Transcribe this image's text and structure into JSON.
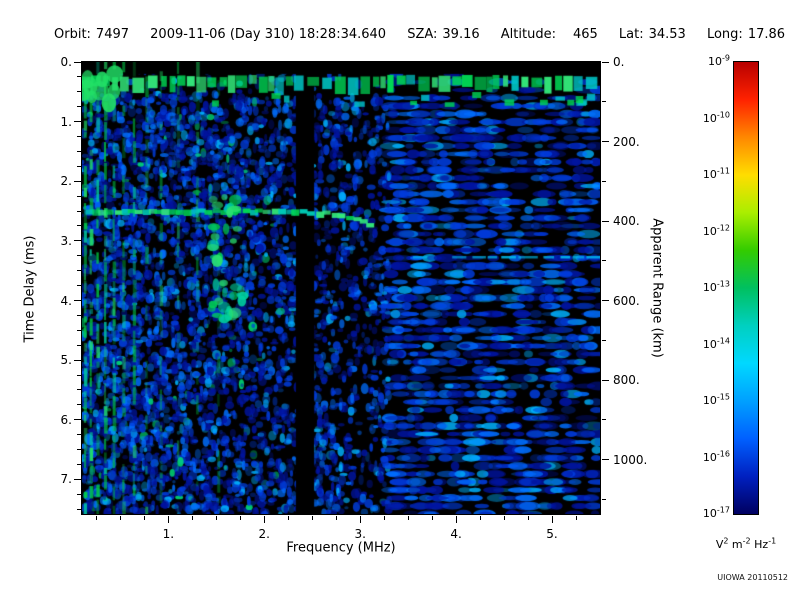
{
  "header": {
    "orbit_label": "Orbit:",
    "orbit_value": "7497",
    "datetime": "2009-11-06 (Day 310) 18:28:34.640",
    "sza_label": "SZA:",
    "sza_value": "39.16",
    "altitude_label": "Altitude:",
    "altitude_value": "465",
    "lat_label": "Lat:",
    "lat_value": "34.53",
    "long_label": "Long:",
    "long_value": "17.86"
  },
  "credit": "UIOWA 20110512",
  "chart_data": {
    "type": "heatmap",
    "title": "Radar sounder ionogram spectrogram",
    "xlabel": "Frequency (MHz)",
    "ylabel": "Time Delay (ms)",
    "y2label": "Apparent Range (km)",
    "x_range": [
      0.1,
      5.5
    ],
    "y_range": [
      0,
      7.58
    ],
    "x_ticks": [
      {
        "v": 1,
        "label": "1."
      },
      {
        "v": 2,
        "label": "2."
      },
      {
        "v": 3,
        "label": "3."
      },
      {
        "v": 4,
        "label": "4."
      },
      {
        "v": 5,
        "label": "5."
      }
    ],
    "x_minor_step": 0.25,
    "y_ticks": [
      {
        "v": 0,
        "label": "0."
      },
      {
        "v": 1,
        "label": "1."
      },
      {
        "v": 2,
        "label": "2."
      },
      {
        "v": 3,
        "label": "3."
      },
      {
        "v": 4,
        "label": "4."
      },
      {
        "v": 5,
        "label": "5."
      },
      {
        "v": 6,
        "label": "6."
      },
      {
        "v": 7,
        "label": "7."
      }
    ],
    "y_minor_step": 0.25,
    "y2_ticks": [
      {
        "km": 0,
        "label": "0."
      },
      {
        "km": 200,
        "label": "200."
      },
      {
        "km": 400,
        "label": "400."
      },
      {
        "km": 600,
        "label": "600."
      },
      {
        "km": 800,
        "label": "800."
      },
      {
        "km": 1000,
        "label": "1000."
      }
    ],
    "y2_minor_step_km": 100,
    "km_per_ms": 150,
    "colorbar": {
      "scale_base": "10",
      "exponents": [
        "-9",
        "-10",
        "-11",
        "-12",
        "-13",
        "-14",
        "-15",
        "-16",
        "-17"
      ],
      "unit_segments": [
        {
          "base": "V",
          "exp": "2"
        },
        {
          "base": " m",
          "exp": "-2"
        },
        {
          "base": " Hz",
          "exp": "-1"
        }
      ],
      "gradient": [
        "#b80000",
        "#ff2200",
        "#ff8800",
        "#ffdd00",
        "#aaee00",
        "#33cc00",
        "#00c060",
        "#00d0c0",
        "#00d8ff",
        "#00a0ff",
        "#0060ff",
        "#0020c0",
        "#000060"
      ]
    },
    "features": {
      "background": "#000000",
      "surface_echo_band_ms": [
        0.24,
        0.46
      ],
      "ionosphere_trace": {
        "points_mhz_ms": [
          [
            0.12,
            2.52
          ],
          [
            1.0,
            2.5
          ],
          [
            2.2,
            2.5
          ],
          [
            2.6,
            2.54
          ],
          [
            2.9,
            2.62
          ],
          [
            3.05,
            2.72
          ],
          [
            3.17,
            2.84
          ]
        ]
      },
      "resonance_lines_mhz": [
        0.13,
        0.19,
        0.26,
        0.34,
        0.43,
        0.53,
        0.64,
        0.77,
        0.92,
        1.1,
        1.3,
        1.52
      ],
      "blanked_band_mhz": [
        2.33,
        2.52
      ],
      "streak": {
        "ms": 3.27,
        "mhz": [
          3.55,
          5.5
        ]
      },
      "cluster": {
        "mhz": [
          1.42,
          1.78
        ],
        "ms": [
          2.25,
          4.35
        ]
      },
      "noise_palette": [
        "#0014a0",
        "#003cdc",
        "#006eff",
        "#00b4ff",
        "#00dc78"
      ],
      "seed": 20110512
    }
  }
}
